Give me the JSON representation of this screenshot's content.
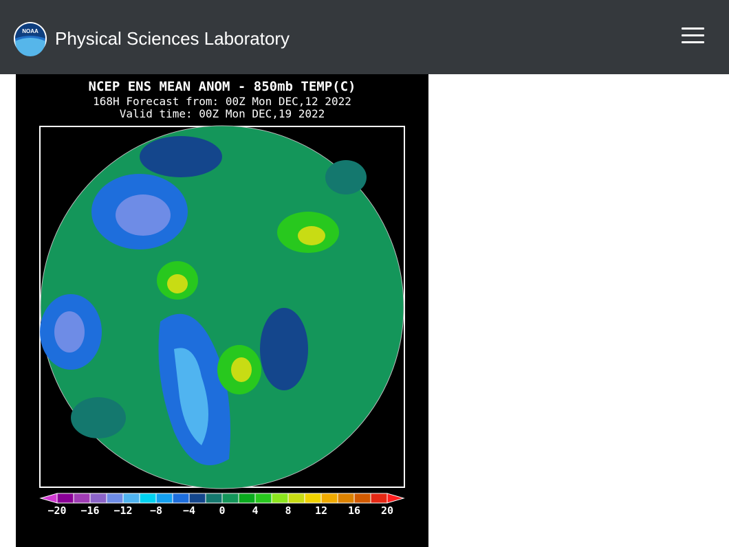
{
  "header": {
    "logo_text": "NOAA",
    "site_title": "Physical Sciences Laboratory"
  },
  "map_image": {
    "title_lines": [
      "NCEP ENS MEAN ANOM - 850mb TEMP(C)",
      "168H Forecast from: 00Z Mon DEC,12 2022",
      "Valid time: 00Z Mon DEC,19 2022"
    ],
    "colorbar": {
      "colors": [
        "#8a0096",
        "#a03cb4",
        "#8c64c8",
        "#6e8ce6",
        "#50b4f0",
        "#00d2f0",
        "#14a0f0",
        "#1e6edc",
        "#14468c",
        "#14786e",
        "#14965a",
        "#0aaa1e",
        "#28c81e",
        "#8ce61e",
        "#c8dc14",
        "#f0d200",
        "#f0aa00",
        "#dc8200",
        "#d25a00",
        "#e62814"
      ],
      "left_arrow_color": "#d23cd2",
      "right_arrow_color": "#ff1e1e",
      "labels": [
        "−20",
        "−16",
        "−12",
        "−8",
        "−4",
        "0",
        "4",
        "8",
        "12",
        "16",
        "20"
      ]
    }
  }
}
